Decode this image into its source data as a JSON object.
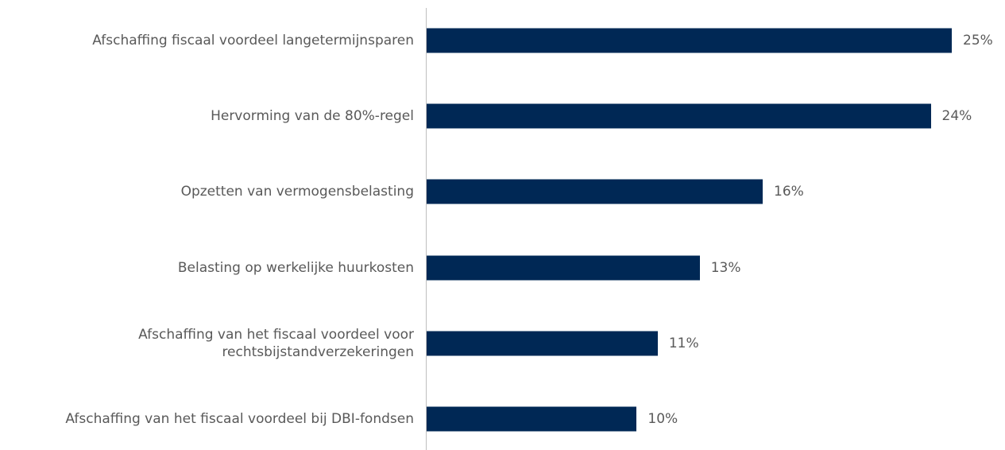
{
  "chart_data": {
    "type": "bar",
    "orientation": "horizontal",
    "categories": [
      "Afschaffing fiscaal voordeel langetermijnsparen",
      "Hervorming van de 80%-regel",
      "Opzetten van vermogensbelasting",
      "Belasting op werkelijke huurkosten",
      "Afschaffing van het fiscaal voordeel voor rechtsbijstandverzekeringen",
      "Afschaffing van het fiscaal voordeel bij DBI-fondsen"
    ],
    "values": [
      25,
      24,
      16,
      13,
      11,
      10
    ],
    "value_labels": [
      "25%",
      "24%",
      "16%",
      "13%",
      "11%",
      "10%"
    ],
    "color": "#002855"
  }
}
